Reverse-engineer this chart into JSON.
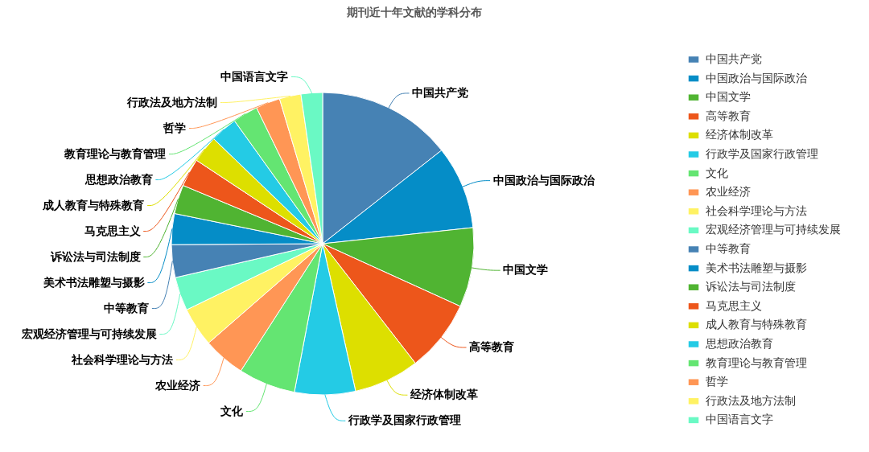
{
  "chart_data": {
    "type": "pie",
    "title": "期刊近十年文献的学科分布",
    "categories": [
      "中国共产党",
      "中国政治与国际政治",
      "中国文学",
      "高等教育",
      "经济体制改革",
      "行政学及国家行政管理",
      "文化",
      "农业经济",
      "社会科学理论与方法",
      "宏观经济管理与可持续发展",
      "中等教育",
      "美术书法雕塑与摄影",
      "诉讼法与司法制度",
      "马克思主义",
      "成人教育与特殊教育",
      "思想政治教育",
      "教育理论与教育管理",
      "哲学",
      "行政法及地方法制",
      "中国语言文字"
    ],
    "values": [
      14.4,
      8.9,
      8.5,
      7.7,
      7.0,
      6.5,
      6.1,
      4.5,
      4.2,
      3.6,
      3.5,
      3.3,
      3.1,
      3.0,
      2.9,
      2.9,
      2.7,
      2.6,
      2.3,
      2.3
    ],
    "colors": [
      "#4682b4",
      "#058dc7",
      "#50b432",
      "#ed561b",
      "#dddf00",
      "#24cbe5",
      "#64e572",
      "#ff9655",
      "#fff263",
      "#6af9c4",
      "#4682b4",
      "#058dc7",
      "#50b432",
      "#ed561b",
      "#dddf00",
      "#24cbe5",
      "#64e572",
      "#ff9655",
      "#fff263",
      "#6af9c4"
    ],
    "legend": "right"
  }
}
